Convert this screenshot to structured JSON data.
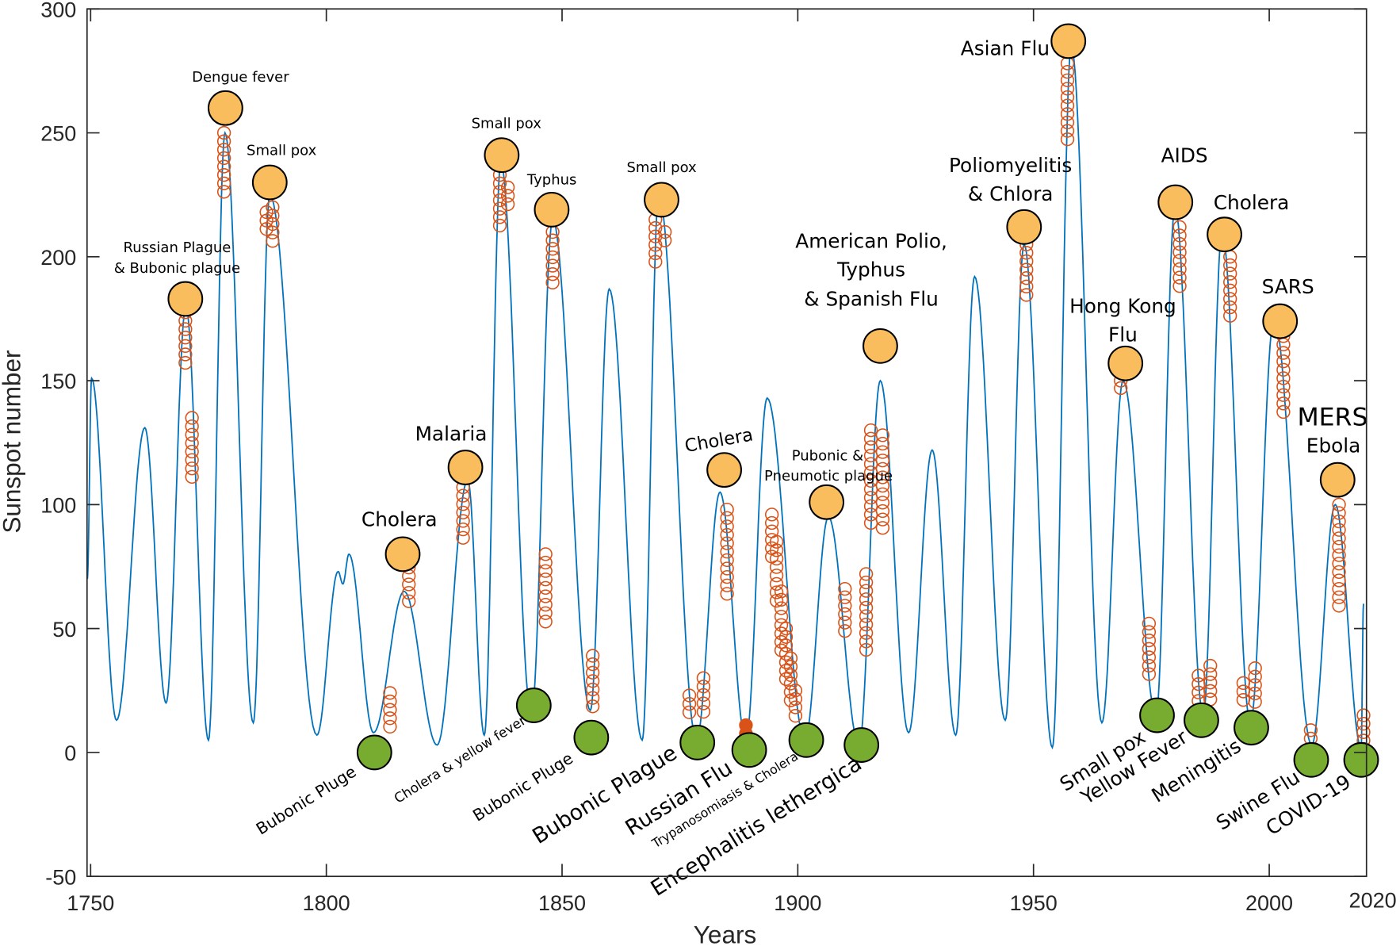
{
  "chart_data": {
    "type": "line",
    "title": "",
    "xlabel": "Years",
    "ylabel": "Sunspot number",
    "xlim": [
      1749,
      2020
    ],
    "ylim": [
      -50,
      300
    ],
    "xticks": [
      "1750",
      "1800",
      "1850",
      "1900",
      "1950",
      "2000",
      "2020"
    ],
    "yticks": [
      "-50",
      "0",
      "50",
      "100",
      "150",
      "200",
      "250",
      "300"
    ],
    "grid": false,
    "colors": {
      "line": "#0072BD",
      "peak_marker": "#F9BD5D",
      "min_marker": "#77AC30",
      "cluster_marker": "#D95319",
      "frame": "#262626"
    },
    "series": [
      {
        "x": [
          1749.3,
          1750.2,
          1755.5,
          1761.5,
          1766,
          1770.2,
          1775,
          1778.5,
          1784.5,
          1788,
          1798,
          1802.5,
          1803.5,
          1804.8,
          1810,
          1816.5,
          1823.5,
          1830,
          1833.5,
          1837,
          1843.5,
          1848,
          1856,
          1860,
          1867,
          1870.5,
          1878.5,
          1883.5,
          1889,
          1893.5,
          1901.5,
          1906.5,
          1913,
          1917.5,
          1923.5,
          1928.5,
          1933.5,
          1937.5,
          1944,
          1948,
          1954,
          1958,
          1964.5,
          1969,
          1976,
          1980,
          1986,
          1990,
          1996,
          2001,
          2009,
          2014,
          2019.5,
          2020
        ],
        "y": [
          70,
          151,
          13,
          131,
          20,
          180,
          5,
          250,
          12,
          225,
          7,
          73,
          68,
          80,
          8,
          65,
          3,
          110,
          7,
          238,
          15,
          215,
          17,
          187,
          5,
          225,
          5,
          105,
          5,
          143,
          5,
          95,
          3,
          150,
          8,
          122,
          7,
          192,
          13,
          205,
          2,
          285,
          12,
          150,
          15,
          220,
          15,
          210,
          12,
          175,
          3,
          100,
          2,
          60
        ]
      }
    ],
    "peak_events": [
      {
        "label": [
          "Russian Plague",
          "& Bubonic plague"
        ],
        "year": 1770.1,
        "value": 183
      },
      {
        "label": [
          "Dengue fever"
        ],
        "year": 1778.6,
        "value": 260
      },
      {
        "label": [
          "Small pox"
        ],
        "year": 1788,
        "value": 230
      },
      {
        "label": [
          "Cholera"
        ],
        "year": 1816.2,
        "value": 80
      },
      {
        "label": [
          "Malaria"
        ],
        "year": 1829.5,
        "value": 115
      },
      {
        "label": [
          "Small pox"
        ],
        "year": 1837.2,
        "value": 241
      },
      {
        "label": [
          "Typhus"
        ],
        "year": 1847.8,
        "value": 219
      },
      {
        "label": [
          "Small pox"
        ],
        "year": 1871.1,
        "value": 223
      },
      {
        "label": [
          "Cholera"
        ],
        "year": 1884.4,
        "value": 114
      },
      {
        "label": [
          "Pubonic &",
          "Pneumotic plague"
        ],
        "year": 1906.1,
        "value": 101
      },
      {
        "label": [
          "American Polio,",
          "Typhus",
          "& Spanish Flu"
        ],
        "year": 1917.5,
        "value": 164
      },
      {
        "label": [
          "Poliomyelitis",
          "& Chlora"
        ],
        "year": 1948,
        "value": 212
      },
      {
        "label": [
          "Asian Flu"
        ],
        "year": 1957.4,
        "value": 287
      },
      {
        "label": [
          "Hong Kong",
          "Flu"
        ],
        "year": 1969.5,
        "value": 157
      },
      {
        "label": [
          "AIDS"
        ],
        "year": 1980.1,
        "value": 222
      },
      {
        "label": [
          "Cholera"
        ],
        "year": 1990.5,
        "value": 209
      },
      {
        "label": [
          "SARS"
        ],
        "year": 2002.3,
        "value": 174
      },
      {
        "label": [
          "MERS",
          "Ebola"
        ],
        "year": 2014.5,
        "value": 110
      }
    ],
    "minimum_events": [
      {
        "label": "Bubonic Pluge",
        "year": 1810.2,
        "value": 0
      },
      {
        "label": "Cholera & yellow fever",
        "year": 1844,
        "value": 19
      },
      {
        "label": "Bubonic Pluge",
        "year": 1856.2,
        "value": 6
      },
      {
        "label": "Bubonic Plague",
        "year": 1878.7,
        "value": 4
      },
      {
        "label": "Russian Flu",
        "year": 1889.7,
        "value": 1
      },
      {
        "label": "Trypanosomiasis & Cholera",
        "year": 1901.8,
        "value": 5
      },
      {
        "label": "Encephalitis lethergica",
        "year": 1913.5,
        "value": 3
      },
      {
        "label": "Small pox",
        "year": 1976.2,
        "value": 15
      },
      {
        "label": "Yellow Fever",
        "year": 1985.6,
        "value": 13
      },
      {
        "label": "Meningitis",
        "year": 1996.2,
        "value": 10
      },
      {
        "label": "Swine Flu",
        "year": 2008.9,
        "value": -3
      },
      {
        "label": "COVID-19",
        "year": 2019.5,
        "value": -3
      }
    ],
    "cluster_markers": [
      {
        "year": 1770.1,
        "range": [
          156,
          181
        ]
      },
      {
        "year": 1771.5,
        "range": [
          108,
          135
        ]
      },
      {
        "year": 1778.3,
        "range": [
          223,
          250
        ]
      },
      {
        "year": 1787.3,
        "range": [
          208,
          218
        ]
      },
      {
        "year": 1788.6,
        "range": [
          205,
          220
        ]
      },
      {
        "year": 1813.5,
        "range": [
          10,
          24
        ]
      },
      {
        "year": 1817.5,
        "range": [
          58,
          78
        ]
      },
      {
        "year": 1829,
        "range": [
          86,
          107
        ]
      },
      {
        "year": 1836.8,
        "range": [
          210,
          233
        ]
      },
      {
        "year": 1838.5,
        "range": [
          218,
          228
        ]
      },
      {
        "year": 1846.5,
        "range": [
          52,
          80
        ]
      },
      {
        "year": 1848,
        "range": [
          188,
          210
        ]
      },
      {
        "year": 1856.5,
        "range": [
          16,
          39
        ]
      },
      {
        "year": 1869.8,
        "range": [
          196,
          215
        ]
      },
      {
        "year": 1871.8,
        "range": [
          204,
          210
        ]
      },
      {
        "year": 1877,
        "range": [
          15,
          23
        ]
      },
      {
        "year": 1880,
        "range": [
          15,
          30
        ]
      },
      {
        "year": 1885,
        "range": [
          64,
          98
        ]
      },
      {
        "year": 1889,
        "range": [
          7,
          11
        ]
      },
      {
        "year": 1894.5,
        "range": [
          78,
          96
        ]
      },
      {
        "year": 1895.5,
        "range": [
          60,
          85
        ]
      },
      {
        "year": 1896.5,
        "range": [
          40,
          65
        ]
      },
      {
        "year": 1897.5,
        "range": [
          28,
          50
        ]
      },
      {
        "year": 1898.5,
        "range": [
          18,
          38
        ]
      },
      {
        "year": 1899.5,
        "range": [
          12,
          25
        ]
      },
      {
        "year": 1910,
        "range": [
          48,
          66
        ]
      },
      {
        "year": 1914.5,
        "range": [
          40,
          72
        ]
      },
      {
        "year": 1915.5,
        "range": [
          90,
          130
        ]
      },
      {
        "year": 1918,
        "range": [
          90,
          128
        ]
      },
      {
        "year": 1948.5,
        "range": [
          183,
          205
        ]
      },
      {
        "year": 1957.2,
        "range": [
          247,
          278
        ]
      },
      {
        "year": 1968.5,
        "range": [
          147,
          150
        ]
      },
      {
        "year": 1974.5,
        "range": [
          30,
          52
        ]
      },
      {
        "year": 1981,
        "range": [
          188,
          212
        ]
      },
      {
        "year": 1985,
        "range": [
          20,
          31
        ]
      },
      {
        "year": 1987.5,
        "range": [
          20,
          35
        ]
      },
      {
        "year": 1991.7,
        "range": [
          174,
          200
        ]
      },
      {
        "year": 1994.5,
        "range": [
          18,
          28
        ]
      },
      {
        "year": 1997,
        "range": [
          20,
          34
        ]
      },
      {
        "year": 2003,
        "range": [
          137,
          168
        ]
      },
      {
        "year": 2008.8,
        "range": [
          3,
          9
        ]
      },
      {
        "year": 2014.8,
        "range": [
          56,
          100
        ]
      },
      {
        "year": 2020,
        "range": [
          0,
          15
        ]
      }
    ]
  }
}
